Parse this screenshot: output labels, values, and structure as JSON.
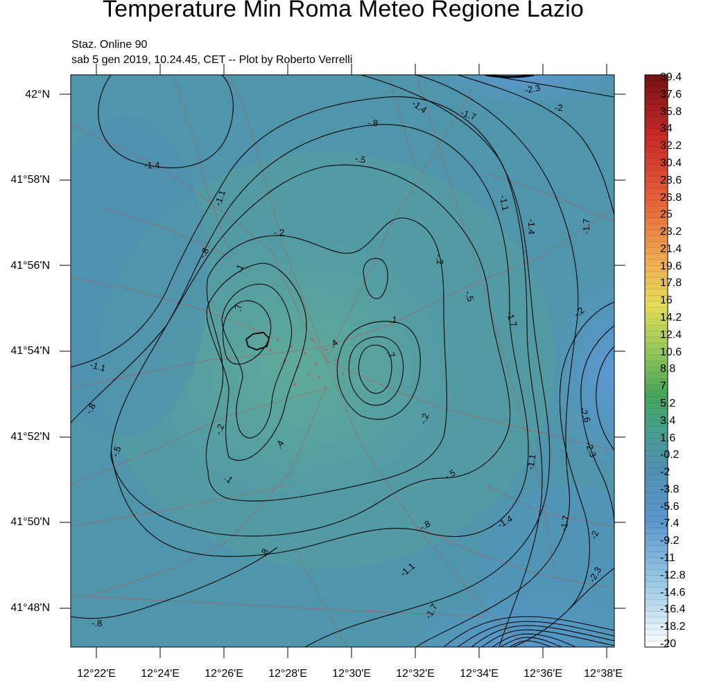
{
  "title": "Temperature Min Roma Meteo Regione Lazio",
  "subtitle_1": "Staz. Online 90",
  "subtitle_2": "sab  5 gen 2019, 10.24.45, CET -- Plot by Roberto Verrelli",
  "map": {
    "lat_labels": [
      "42°N",
      "41°58'N",
      "41°56'N",
      "41°54'N",
      "41°52'N",
      "41°50'N",
      "41°48'N"
    ],
    "lon_labels": [
      "12°22'E",
      "12°24'E",
      "12°26'E",
      "12°28'E",
      "12°30'E",
      "12°32'E",
      "12°34'E",
      "12°36'E",
      "12°38'E"
    ],
    "contour_labels": [
      "-1.4",
      "-1.1",
      "-.8",
      "-.5",
      "-.2",
      ".1",
      ".4",
      ".7",
      ".1",
      ".7",
      "-1.4",
      "-1.7",
      "-2",
      "-2.3",
      "-2.6",
      "-1.1",
      "-1.4",
      "-1.7",
      "-2.3",
      "-1.1",
      "-.8",
      "-.5",
      "-.2",
      "-.2",
      "-.2",
      "-.5",
      "-.8",
      "-1.1",
      "-1.7",
      "-1.4",
      "-1.7",
      "-2",
      "-2.3",
      "-.8",
      "-.8",
      "-.5",
      "-.8",
      "-1.1",
      "-.2",
      "-1.7",
      ".4",
      ".1"
    ],
    "field_colors": {
      "cold": "#5c96c8",
      "mid": "#4c93a6",
      "warm": "#5aa694"
    }
  },
  "colorbar": {
    "labels": [
      "39.4",
      "37.6",
      "35.8",
      "34",
      "32.2",
      "30.4",
      "28.6",
      "26.8",
      "25",
      "23.2",
      "21.4",
      "19.6",
      "17.8",
      "16",
      "14.2",
      "12.4",
      "10.6",
      "8.8",
      "7",
      "5.2",
      "3.4",
      "1.6",
      "-0.2",
      "-2",
      "-3.8",
      "-5.6",
      "-7.4",
      "-9.2",
      "-11",
      "-12.8",
      "-14.6",
      "-16.4",
      "-18.2",
      "-20"
    ]
  }
}
